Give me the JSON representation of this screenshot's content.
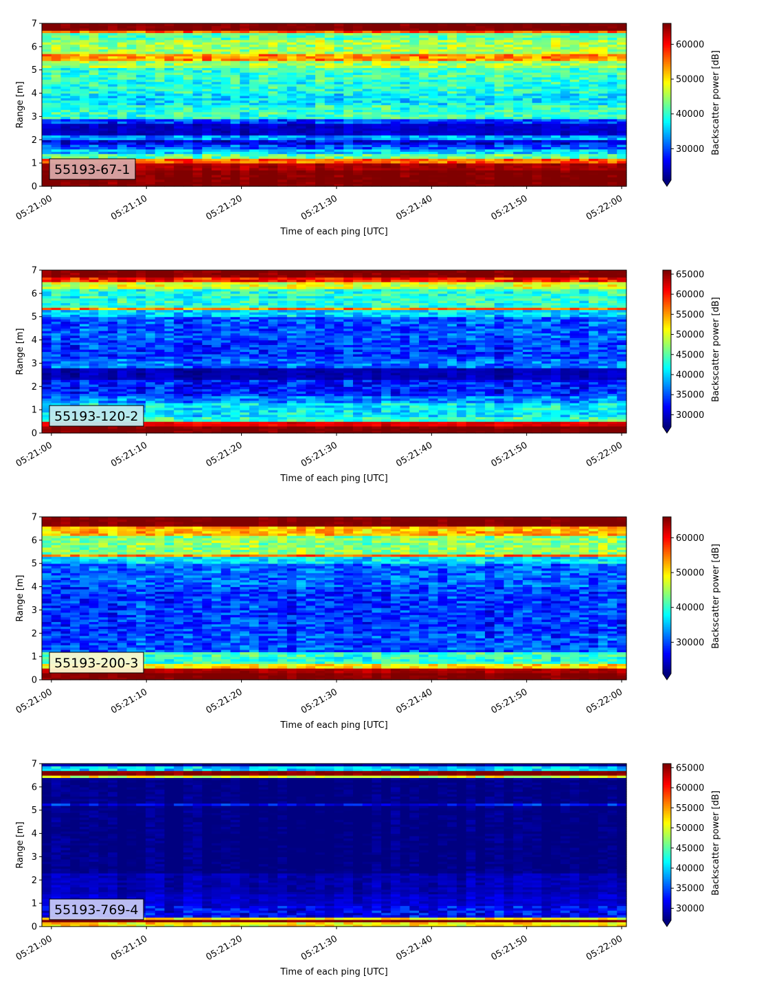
{
  "chart_data": [
    {
      "type": "heatmap",
      "badge": "55193-67-1",
      "badge_color": "#d8a7a7",
      "xlabel": "Time of each ping [UTC]",
      "ylabel": "Range [m]",
      "colorbar_label": "Backscatter power [dB]",
      "x_ticks": [
        "05:21:00",
        "05:21:10",
        "05:21:20",
        "05:21:30",
        "05:21:40",
        "05:21:50",
        "05:22:00"
      ],
      "y_ticks": [
        "0",
        "1",
        "2",
        "3",
        "4",
        "5",
        "6",
        "7"
      ],
      "colorbar_ticks": [
        "30000",
        "40000",
        "50000",
        "60000"
      ],
      "xlim_seconds": [
        -1,
        60.5
      ],
      "ylim": [
        0,
        7
      ],
      "clim": [
        21000,
        66000
      ],
      "range_profile": [
        [
          0.0,
          0.3,
          66000
        ],
        [
          0.3,
          0.7,
          66000
        ],
        [
          0.7,
          1.05,
          64000
        ],
        [
          1.05,
          1.2,
          56000
        ],
        [
          1.2,
          1.45,
          42000
        ],
        [
          1.45,
          1.65,
          36000
        ],
        [
          1.65,
          1.8,
          30000
        ],
        [
          1.8,
          2.0,
          26000
        ],
        [
          2.0,
          2.25,
          33000
        ],
        [
          2.25,
          2.75,
          24000
        ],
        [
          2.75,
          2.9,
          29000
        ],
        [
          2.9,
          3.5,
          40000
        ],
        [
          3.5,
          4.0,
          37000
        ],
        [
          4.0,
          4.5,
          39000
        ],
        [
          4.5,
          5.1,
          40000
        ],
        [
          5.1,
          5.4,
          45000
        ],
        [
          5.4,
          5.75,
          54000
        ],
        [
          5.75,
          6.3,
          45000
        ],
        [
          6.3,
          6.6,
          42000
        ],
        [
          6.6,
          6.75,
          56000
        ],
        [
          6.75,
          7.0,
          66000
        ]
      ]
    },
    {
      "type": "heatmap",
      "badge": "55193-120-2",
      "badge_color": "#bfe9ee",
      "xlabel": "Time of each ping [UTC]",
      "ylabel": "Range [m]",
      "colorbar_label": "Backscatter power [dB]",
      "x_ticks": [
        "05:21:00",
        "05:21:10",
        "05:21:20",
        "05:21:30",
        "05:21:40",
        "05:21:50",
        "05:22:00"
      ],
      "y_ticks": [
        "0",
        "1",
        "2",
        "3",
        "4",
        "5",
        "6",
        "7"
      ],
      "colorbar_ticks": [
        "30000",
        "35000",
        "40000",
        "45000",
        "50000",
        "55000",
        "60000",
        "65000"
      ],
      "xlim_seconds": [
        -1,
        60.5
      ],
      "ylim": [
        0,
        7
      ],
      "clim": [
        27000,
        66000
      ],
      "range_profile": [
        [
          0.0,
          0.35,
          66000
        ],
        [
          0.35,
          0.55,
          62000
        ],
        [
          0.55,
          0.75,
          44000
        ],
        [
          0.75,
          1.3,
          41000
        ],
        [
          1.3,
          1.6,
          37000
        ],
        [
          1.6,
          2.3,
          33000
        ],
        [
          2.3,
          2.8,
          29000
        ],
        [
          2.8,
          3.2,
          36000
        ],
        [
          3.2,
          4.0,
          34000
        ],
        [
          4.0,
          5.0,
          35000
        ],
        [
          5.0,
          5.3,
          40000
        ],
        [
          5.3,
          5.45,
          56000
        ],
        [
          5.45,
          6.2,
          43000
        ],
        [
          6.2,
          6.5,
          50000
        ],
        [
          6.5,
          6.7,
          60000
        ],
        [
          6.7,
          7.0,
          66000
        ]
      ]
    },
    {
      "type": "heatmap",
      "badge": "55193-200-3",
      "badge_color": "#fbf6cf",
      "xlabel": "Time of each ping [UTC]",
      "ylabel": "Range [m]",
      "colorbar_label": "Backscatter power [dB]",
      "x_ticks": [
        "05:21:00",
        "05:21:10",
        "05:21:20",
        "05:21:30",
        "05:21:40",
        "05:21:50",
        "05:22:00"
      ],
      "y_ticks": [
        "0",
        "1",
        "2",
        "3",
        "4",
        "5",
        "6",
        "7"
      ],
      "colorbar_ticks": [
        "30000",
        "40000",
        "50000",
        "60000"
      ],
      "xlim_seconds": [
        -1,
        60.5
      ],
      "ylim": [
        0,
        7
      ],
      "clim": [
        21000,
        66000
      ],
      "range_profile": [
        [
          0.0,
          0.3,
          66000
        ],
        [
          0.3,
          0.5,
          64000
        ],
        [
          0.5,
          0.75,
          50000
        ],
        [
          0.75,
          1.2,
          40000
        ],
        [
          1.2,
          2.0,
          30000
        ],
        [
          2.0,
          3.0,
          29000
        ],
        [
          3.0,
          4.0,
          29000
        ],
        [
          4.0,
          5.0,
          31000
        ],
        [
          5.0,
          5.3,
          37000
        ],
        [
          5.3,
          5.45,
          55000
        ],
        [
          5.45,
          6.2,
          44000
        ],
        [
          6.2,
          6.6,
          52000
        ],
        [
          6.6,
          7.0,
          66000
        ]
      ]
    },
    {
      "type": "heatmap",
      "badge": "55193-769-4",
      "badge_color": "#c4c6f4",
      "xlabel": "Time of each ping [UTC]",
      "ylabel": "Range [m]",
      "colorbar_label": "Backscatter power [dB]",
      "x_ticks": [
        "05:21:00",
        "05:21:10",
        "05:21:20",
        "05:21:30",
        "05:21:40",
        "05:21:50",
        "05:22:00"
      ],
      "y_ticks": [
        "0",
        "1",
        "2",
        "3",
        "4",
        "5",
        "6",
        "7"
      ],
      "colorbar_ticks": [
        "30000",
        "35000",
        "40000",
        "45000",
        "50000",
        "55000",
        "60000",
        "65000"
      ],
      "xlim_seconds": [
        -1,
        60.5
      ],
      "ylim": [
        0,
        7
      ],
      "clim": [
        27000,
        66000
      ],
      "range_profile": [
        [
          0.0,
          0.2,
          52000
        ],
        [
          0.2,
          0.3,
          66000
        ],
        [
          0.3,
          0.4,
          52000
        ],
        [
          0.4,
          0.9,
          32000
        ],
        [
          0.9,
          1.4,
          30000
        ],
        [
          1.4,
          2.3,
          29000
        ],
        [
          2.3,
          5.2,
          27000
        ],
        [
          5.2,
          5.35,
          32000
        ],
        [
          5.35,
          6.45,
          27000
        ],
        [
          6.45,
          6.55,
          50000
        ],
        [
          6.55,
          6.75,
          66000
        ],
        [
          6.75,
          6.9,
          40000
        ],
        [
          6.9,
          7.0,
          28000
        ]
      ]
    }
  ]
}
